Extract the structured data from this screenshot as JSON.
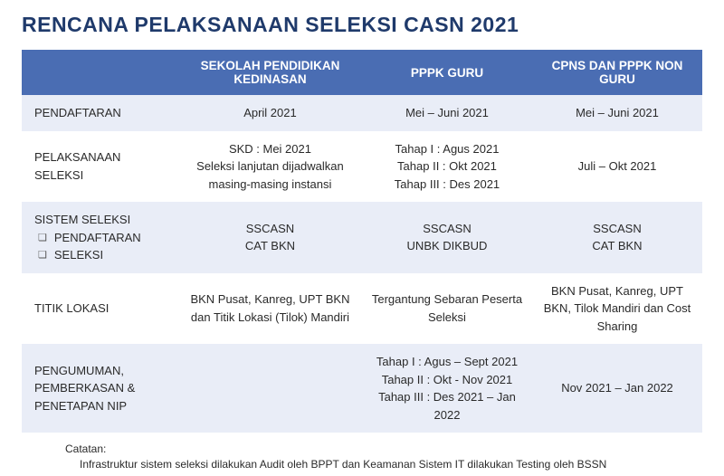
{
  "title": "RENCANA PELAKSANAAN SELEKSI CASN 2021",
  "columns": [
    "",
    "SEKOLAH PENDIDIKAN KEDINASAN",
    "PPPK GURU",
    "CPNS DAN PPPK NON GURU"
  ],
  "rows": [
    {
      "band": "light",
      "label": "PENDAFTARAN",
      "c1": "April 2021",
      "c2": "Mei – Juni 2021",
      "c3": "Mei – Juni 2021"
    },
    {
      "band": "white",
      "label": "PELAKSANAAN SELEKSI",
      "c1": "SKD : Mei 2021\nSeleksi lanjutan dijadwalkan masing-masing instansi",
      "c2": "Tahap I : Agus 2021\nTahap II : Okt 2021\nTahap III : Des 2021",
      "c3": "Juli – Okt 2021"
    },
    {
      "band": "light",
      "label_main": "SISTEM SELEKSI",
      "label_sub1": "PENDAFTARAN",
      "label_sub2": "SELEKSI",
      "c1": "SSCASN\nCAT BKN",
      "c2": "SSCASN\nUNBK DIKBUD",
      "c3": "SSCASN\nCAT BKN"
    },
    {
      "band": "white",
      "label": "TITIK LOKASI",
      "c1": "BKN Pusat, Kanreg, UPT BKN dan Titik Lokasi (Tilok) Mandiri",
      "c2": "Tergantung Sebaran Peserta Seleksi",
      "c3": "BKN Pusat, Kanreg, UPT BKN, Tilok Mandiri dan Cost Sharing"
    },
    {
      "band": "light",
      "label": "PENGUMUMAN, PEMBERKASAN & PENETAPAN NIP",
      "c1": "",
      "c2": "Tahap I : Agus – Sept 2021\nTahap II : Okt - Nov 2021\nTahap III : Des 2021 – Jan 2022",
      "c3": "Nov 2021 – Jan 2022"
    }
  ],
  "footer": {
    "label": "Catatan:",
    "text": "Infrastruktur sistem seleksi dilakukan Audit oleh BPPT dan Keamanan Sistem IT dilakukan Testing oleh BSSN"
  },
  "colors": {
    "title": "#1f3a6b",
    "header_bg": "#4a6db3",
    "header_fg": "#ffffff",
    "band_light": "#e9edf7",
    "band_white": "#ffffff"
  }
}
